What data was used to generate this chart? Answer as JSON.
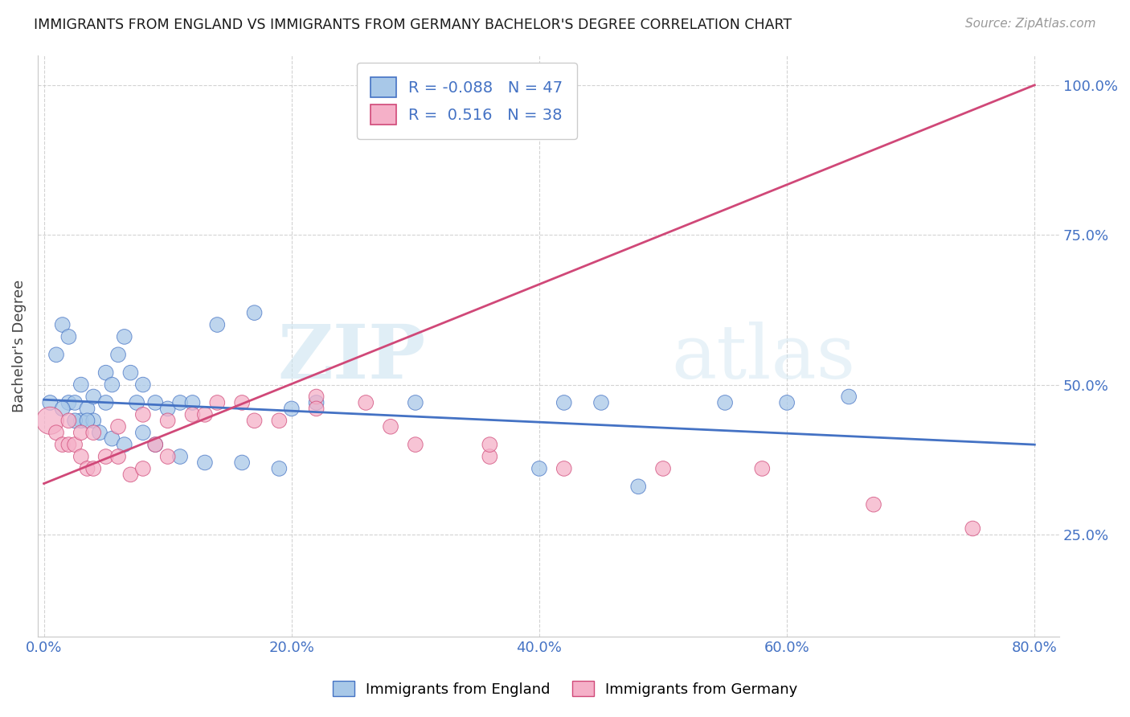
{
  "title": "IMMIGRANTS FROM ENGLAND VS IMMIGRANTS FROM GERMANY BACHELOR'S DEGREE CORRELATION CHART",
  "source": "Source: ZipAtlas.com",
  "ylabel": "Bachelor's Degree",
  "xlim": [
    -0.005,
    0.82
  ],
  "ylim": [
    0.08,
    1.05
  ],
  "y_ticks": [
    0.25,
    0.5,
    0.75,
    1.0
  ],
  "y_tick_labels": [
    "25.0%",
    "50.0%",
    "75.0%",
    "100.0%"
  ],
  "x_ticks": [
    0.0,
    0.2,
    0.4,
    0.6,
    0.8
  ],
  "x_tick_labels": [
    "0.0%",
    "20.0%",
    "40.0%",
    "60.0%",
    "80.0%"
  ],
  "legend_r_england": "-0.088",
  "legend_n_england": "47",
  "legend_r_germany": " 0.516",
  "legend_n_germany": "38",
  "color_england": "#a8c8e8",
  "color_germany": "#f5b0c8",
  "line_color_england": "#4472c4",
  "line_color_germany": "#d04878",
  "watermark_zip": "ZIP",
  "watermark_atlas": "atlas",
  "england_line_x": [
    0.0,
    0.8
  ],
  "england_line_y": [
    0.475,
    0.4
  ],
  "germany_line_x": [
    0.0,
    0.8
  ],
  "germany_line_y": [
    0.335,
    1.0
  ],
  "england_x": [
    0.005,
    0.01,
    0.015,
    0.02,
    0.02,
    0.025,
    0.03,
    0.03,
    0.035,
    0.04,
    0.04,
    0.05,
    0.05,
    0.055,
    0.06,
    0.065,
    0.07,
    0.075,
    0.08,
    0.09,
    0.1,
    0.11,
    0.12,
    0.14,
    0.17,
    0.2,
    0.22,
    0.3,
    0.4,
    0.42,
    0.45,
    0.48,
    0.55,
    0.6,
    0.65,
    0.015,
    0.025,
    0.035,
    0.045,
    0.055,
    0.065,
    0.08,
    0.09,
    0.11,
    0.13,
    0.16,
    0.19
  ],
  "england_y": [
    0.47,
    0.55,
    0.6,
    0.47,
    0.58,
    0.47,
    0.44,
    0.5,
    0.46,
    0.44,
    0.48,
    0.47,
    0.52,
    0.5,
    0.55,
    0.58,
    0.52,
    0.47,
    0.5,
    0.47,
    0.46,
    0.47,
    0.47,
    0.6,
    0.62,
    0.46,
    0.47,
    0.47,
    0.36,
    0.47,
    0.47,
    0.33,
    0.47,
    0.47,
    0.48,
    0.46,
    0.44,
    0.44,
    0.42,
    0.41,
    0.4,
    0.42,
    0.4,
    0.38,
    0.37,
    0.37,
    0.36
  ],
  "germany_x": [
    0.005,
    0.01,
    0.015,
    0.02,
    0.025,
    0.03,
    0.035,
    0.04,
    0.05,
    0.06,
    0.07,
    0.08,
    0.09,
    0.1,
    0.12,
    0.14,
    0.16,
    0.19,
    0.22,
    0.26,
    0.3,
    0.36,
    0.42,
    0.5,
    0.58,
    0.67,
    0.75,
    0.02,
    0.03,
    0.04,
    0.06,
    0.08,
    0.1,
    0.13,
    0.17,
    0.22,
    0.28,
    0.36
  ],
  "germany_y": [
    0.44,
    0.42,
    0.4,
    0.4,
    0.4,
    0.38,
    0.36,
    0.36,
    0.38,
    0.38,
    0.35,
    0.36,
    0.4,
    0.38,
    0.45,
    0.47,
    0.47,
    0.44,
    0.48,
    0.47,
    0.4,
    0.38,
    0.36,
    0.36,
    0.36,
    0.3,
    0.26,
    0.44,
    0.42,
    0.42,
    0.43,
    0.45,
    0.44,
    0.45,
    0.44,
    0.46,
    0.43,
    0.4
  ],
  "england_sizes": [
    180,
    180,
    180,
    180,
    180,
    180,
    180,
    180,
    180,
    180,
    180,
    180,
    180,
    180,
    180,
    180,
    180,
    180,
    180,
    180,
    180,
    180,
    180,
    180,
    180,
    180,
    180,
    180,
    180,
    180,
    180,
    180,
    180,
    180,
    180,
    180,
    180,
    180,
    180,
    180,
    180,
    180,
    180,
    180,
    180,
    180,
    180
  ],
  "germany_sizes": [
    600,
    180,
    180,
    180,
    180,
    180,
    180,
    180,
    180,
    180,
    180,
    180,
    180,
    180,
    180,
    180,
    180,
    180,
    180,
    180,
    180,
    180,
    180,
    180,
    180,
    180,
    180,
    180,
    180,
    180,
    180,
    180,
    180,
    180,
    180,
    180,
    180,
    180
  ]
}
